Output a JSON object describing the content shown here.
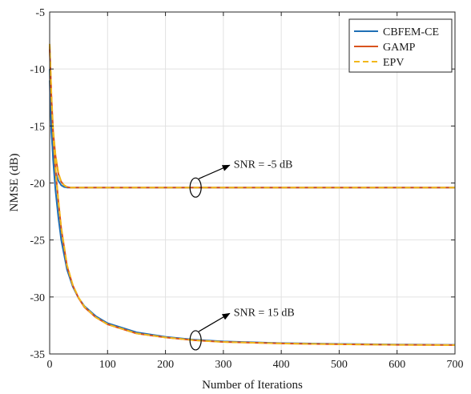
{
  "chart_data": {
    "type": "line",
    "title": "",
    "xlabel": "Number of Iterations",
    "ylabel": "NMSE (dB)",
    "xlim": [
      0,
      700
    ],
    "ylim": [
      -35,
      -5
    ],
    "xticks": [
      0,
      100,
      200,
      300,
      400,
      500,
      600,
      700
    ],
    "yticks": [
      -5,
      -10,
      -15,
      -20,
      -25,
      -30,
      -35
    ],
    "grid": true,
    "legend_position": "top-right",
    "series": [
      {
        "name": "CBFEM-CE",
        "color": "#1f6fb5",
        "dash": "solid",
        "x": [
          0,
          3,
          6,
          10,
          15,
          20,
          25,
          30,
          35,
          40,
          50,
          60,
          100,
          200,
          300,
          500,
          700
        ],
        "y": [
          -11.0,
          -15.5,
          -17.6,
          -19.0,
          -19.8,
          -20.2,
          -20.35,
          -20.4,
          -20.4,
          -20.4,
          -20.4,
          -20.4,
          -20.4,
          -20.4,
          -20.4,
          -20.4,
          -20.4
        ],
        "group": "SNR = -5 dB"
      },
      {
        "name": "GAMP",
        "color": "#d9531e",
        "dash": "solid",
        "x": [
          0,
          3,
          6,
          10,
          15,
          20,
          25,
          30,
          35,
          40,
          50,
          60,
          100,
          200,
          300,
          500,
          700
        ],
        "y": [
          -8.2,
          -12.5,
          -15.5,
          -17.6,
          -19.2,
          -19.9,
          -20.2,
          -20.35,
          -20.4,
          -20.4,
          -20.4,
          -20.4,
          -20.4,
          -20.4,
          -20.4,
          -20.4,
          -20.4
        ],
        "group": "SNR = -5 dB"
      },
      {
        "name": "EPV",
        "color": "#f2b81c",
        "dash": "dashed",
        "x": [
          0,
          3,
          6,
          10,
          15,
          20,
          25,
          30,
          35,
          40,
          50,
          60,
          100,
          200,
          300,
          500,
          700
        ],
        "y": [
          -7.8,
          -12.2,
          -15.3,
          -17.5,
          -19.1,
          -19.9,
          -20.2,
          -20.35,
          -20.4,
          -20.4,
          -20.4,
          -20.4,
          -20.4,
          -20.4,
          -20.4,
          -20.4,
          -20.4
        ],
        "group": "SNR = -5 dB"
      },
      {
        "name": "CBFEM-CE",
        "color": "#1f6fb5",
        "dash": "solid",
        "x": [
          0,
          3,
          6,
          10,
          15,
          20,
          30,
          40,
          50,
          60,
          80,
          100,
          150,
          200,
          250,
          300,
          400,
          500,
          600,
          700
        ],
        "y": [
          -10.0,
          -15.0,
          -18.0,
          -20.6,
          -23.0,
          -25.0,
          -27.6,
          -29.1,
          -30.1,
          -30.8,
          -31.7,
          -32.3,
          -33.1,
          -33.5,
          -33.75,
          -33.9,
          -34.05,
          -34.12,
          -34.17,
          -34.2
        ],
        "group": "SNR = 15 dB"
      },
      {
        "name": "GAMP",
        "color": "#d9531e",
        "dash": "solid",
        "x": [
          0,
          3,
          6,
          10,
          15,
          20,
          30,
          40,
          50,
          60,
          80,
          100,
          150,
          200,
          250,
          300,
          400,
          500,
          600,
          700
        ],
        "y": [
          -8.0,
          -12.5,
          -15.8,
          -18.8,
          -21.6,
          -24.0,
          -27.3,
          -29.0,
          -30.1,
          -30.9,
          -31.8,
          -32.4,
          -33.2,
          -33.55,
          -33.8,
          -33.95,
          -34.08,
          -34.15,
          -34.2,
          -34.22
        ],
        "group": "SNR = 15 dB"
      },
      {
        "name": "EPV",
        "color": "#f2b81c",
        "dash": "dashed",
        "x": [
          0,
          3,
          6,
          10,
          15,
          20,
          30,
          40,
          50,
          60,
          80,
          100,
          150,
          200,
          250,
          300,
          400,
          500,
          600,
          700
        ],
        "y": [
          -7.8,
          -12.3,
          -15.6,
          -18.7,
          -21.5,
          -23.9,
          -27.2,
          -28.95,
          -30.05,
          -30.85,
          -31.8,
          -32.4,
          -33.2,
          -33.55,
          -33.8,
          -33.95,
          -34.08,
          -34.15,
          -34.2,
          -34.22
        ],
        "group": "SNR = 15 dB"
      }
    ],
    "annotations": [
      {
        "text": "SNR = -5 dB",
        "ellipse_at": [
          252,
          -20.4
        ],
        "arrow_to": [
          315,
          -18.3
        ]
      },
      {
        "text": "SNR = 15 dB",
        "ellipse_at": [
          252,
          -33.8
        ],
        "arrow_to": [
          315,
          -31.3
        ]
      }
    ]
  }
}
